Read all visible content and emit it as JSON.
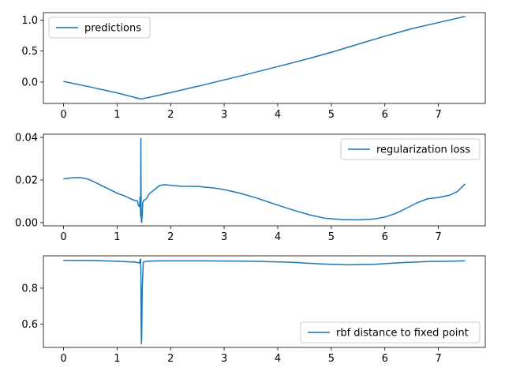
{
  "chart_data": [
    {
      "type": "line",
      "legend_placement": "upper-left",
      "grid": false,
      "xlim": [
        -0.375,
        7.875
      ],
      "ylim": [
        -0.345,
        1.12
      ],
      "x_ticks": [
        0,
        1,
        2,
        3,
        4,
        5,
        6,
        7
      ],
      "y_ticks": [
        0.0,
        0.5,
        1.0
      ],
      "y_tick_labels": [
        "0.0",
        "0.5",
        "1.0"
      ],
      "series": [
        {
          "name": "predictions",
          "color": "#1f77b4",
          "x": [
            0,
            0.5,
            1.0,
            1.45,
            2.0,
            2.5,
            3.0,
            3.5,
            4.0,
            4.5,
            5.0,
            5.5,
            6.0,
            6.5,
            7.0,
            7.5
          ],
          "y": [
            0.01,
            -0.08,
            -0.175,
            -0.275,
            -0.17,
            -0.07,
            0.035,
            0.14,
            0.25,
            0.36,
            0.48,
            0.61,
            0.74,
            0.86,
            0.96,
            1.06
          ]
        }
      ]
    },
    {
      "type": "line",
      "legend_placement": "upper-right",
      "grid": false,
      "xlim": [
        -0.375,
        7.875
      ],
      "ylim": [
        -0.0015,
        0.0415
      ],
      "x_ticks": [
        0,
        1,
        2,
        3,
        4,
        5,
        6,
        7
      ],
      "y_ticks": [
        0.0,
        0.02,
        0.04
      ],
      "y_tick_labels": [
        "0.00",
        "0.02",
        "0.04"
      ],
      "series": [
        {
          "name": "regularization loss",
          "color": "#1f77b4",
          "x": [
            0,
            0.15,
            0.3,
            0.45,
            0.6,
            0.8,
            1.0,
            1.15,
            1.25,
            1.32,
            1.38,
            1.4,
            1.42,
            1.43,
            1.44,
            1.445,
            1.45,
            1.455,
            1.46,
            1.47,
            1.48,
            1.5,
            1.55,
            1.6,
            1.7,
            1.8,
            1.9,
            2.0,
            2.2,
            2.5,
            2.8,
            3.0,
            3.3,
            3.6,
            4.0,
            4.3,
            4.6,
            4.9,
            5.2,
            5.5,
            5.8,
            6.0,
            6.2,
            6.4,
            6.6,
            6.8,
            7.0,
            7.2,
            7.35,
            7.5
          ],
          "y": [
            0.0205,
            0.021,
            0.0212,
            0.0205,
            0.0188,
            0.0163,
            0.0138,
            0.0125,
            0.0112,
            0.0105,
            0.0102,
            0.008,
            0.0075,
            0.012,
            0.003,
            0.0395,
            0.003,
            0.0005,
            0.0001,
            0.0035,
            0.0095,
            0.0105,
            0.0112,
            0.0135,
            0.0155,
            0.0175,
            0.0178,
            0.0175,
            0.0171,
            0.017,
            0.0163,
            0.0155,
            0.0138,
            0.0116,
            0.0082,
            0.0058,
            0.0036,
            0.002,
            0.0014,
            0.0013,
            0.0017,
            0.0026,
            0.0043,
            0.0067,
            0.0093,
            0.0112,
            0.0118,
            0.0128,
            0.0145,
            0.0182
          ]
        }
      ]
    },
    {
      "type": "line",
      "legend_placement": "lower-right",
      "grid": false,
      "xlim": [
        -0.375,
        7.875
      ],
      "ylim": [
        0.47,
        0.98
      ],
      "x_ticks": [
        0,
        1,
        2,
        3,
        4,
        5,
        6,
        7
      ],
      "y_ticks": [
        0.6,
        0.8
      ],
      "y_tick_labels": [
        "0.6",
        "0.8"
      ],
      "series": [
        {
          "name": "rbf distance to fixed point",
          "color": "#1f77b4",
          "x": [
            0,
            0.5,
            1.0,
            1.35,
            1.42,
            1.43,
            1.44,
            1.445,
            1.45,
            1.455,
            1.46,
            1.47,
            1.49,
            1.55,
            1.8,
            2.5,
            3.5,
            4.2,
            4.8,
            5.3,
            5.8,
            6.3,
            6.8,
            7.2,
            7.5
          ],
          "y": [
            0.955,
            0.954,
            0.95,
            0.945,
            0.94,
            0.955,
            0.962,
            0.9,
            0.6,
            0.49,
            0.52,
            0.8,
            0.945,
            0.95,
            0.952,
            0.952,
            0.95,
            0.945,
            0.935,
            0.93,
            0.933,
            0.942,
            0.948,
            0.95,
            0.952
          ]
        }
      ]
    }
  ]
}
